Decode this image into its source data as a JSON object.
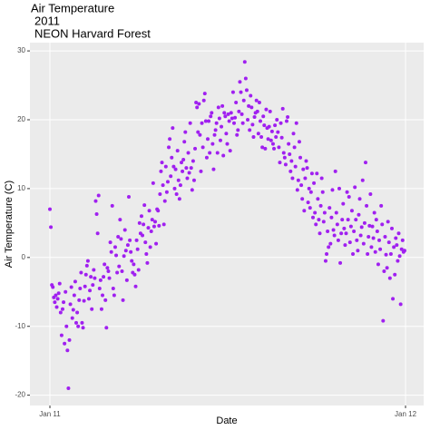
{
  "chart_data": {
    "type": "scatter",
    "title": [
      "Air Temperature",
      "2011",
      "NEON Harvard Forest"
    ],
    "x_label": "Date",
    "y_label": "Air Temperature (C)",
    "color": "#a020f0",
    "grid": true,
    "xlim": [
      -20.5,
      383.6
    ],
    "xticks": [
      {
        "value": 0,
        "label": "Jan 11"
      },
      {
        "value": 365,
        "label": "Jan 12"
      }
    ],
    "ylim": [
      -21.5,
      31.2
    ],
    "yticks": [
      -20,
      -10,
      0,
      10,
      20,
      30
    ],
    "x": [
      0,
      1,
      2,
      3,
      4,
      5,
      6,
      7,
      8,
      9,
      10,
      11,
      12,
      13,
      14,
      15,
      16,
      17,
      18,
      19,
      20,
      21,
      22,
      23,
      24,
      25,
      26,
      27,
      28,
      29,
      30,
      31,
      32,
      33,
      34,
      35,
      36,
      37,
      38,
      39,
      40,
      41,
      42,
      43,
      44,
      45,
      46,
      47,
      48,
      49,
      50,
      51,
      52,
      53,
      54,
      55,
      56,
      57,
      58,
      59,
      60,
      61,
      62,
      63,
      64,
      65,
      66,
      67,
      68,
      69,
      70,
      71,
      72,
      73,
      74,
      75,
      76,
      77,
      78,
      79,
      80,
      81,
      82,
      83,
      84,
      85,
      86,
      87,
      88,
      89,
      90,
      91,
      92,
      93,
      94,
      95,
      96,
      97,
      98,
      99,
      100,
      101,
      102,
      103,
      104,
      105,
      106,
      107,
      108,
      109,
      110,
      111,
      112,
      113,
      114,
      115,
      116,
      117,
      118,
      119,
      120,
      121,
      122,
      123,
      124,
      125,
      126,
      127,
      128,
      129,
      130,
      131,
      132,
      133,
      134,
      135,
      136,
      137,
      138,
      139,
      140,
      141,
      142,
      143,
      144,
      145,
      146,
      147,
      148,
      149,
      150,
      151,
      152,
      153,
      154,
      155,
      156,
      157,
      158,
      159,
      160,
      161,
      162,
      163,
      164,
      165,
      166,
      167,
      168,
      169,
      170,
      171,
      172,
      173,
      174,
      175,
      176,
      177,
      178,
      179,
      180,
      181,
      182,
      183,
      184,
      185,
      186,
      187,
      188,
      189,
      190,
      191,
      192,
      193,
      194,
      195,
      196,
      197,
      198,
      199,
      200,
      201,
      202,
      203,
      204,
      205,
      206,
      207,
      208,
      209,
      210,
      211,
      212,
      213,
      214,
      215,
      216,
      217,
      218,
      219,
      220,
      221,
      222,
      223,
      224,
      225,
      226,
      227,
      228,
      229,
      230,
      231,
      232,
      233,
      234,
      235,
      236,
      237,
      238,
      239,
      240,
      241,
      242,
      243,
      244,
      245,
      246,
      247,
      248,
      249,
      250,
      251,
      252,
      253,
      254,
      255,
      256,
      257,
      258,
      259,
      260,
      261,
      262,
      263,
      264,
      265,
      266,
      267,
      268,
      269,
      270,
      271,
      272,
      273,
      274,
      275,
      276,
      277,
      278,
      279,
      280,
      281,
      282,
      283,
      284,
      285,
      286,
      287,
      288,
      289,
      290,
      291,
      292,
      293,
      294,
      295,
      296,
      297,
      298,
      299,
      300,
      301,
      302,
      303,
      304,
      305,
      306,
      307,
      308,
      309,
      310,
      311,
      312,
      313,
      314,
      315,
      316,
      317,
      318,
      319,
      320,
      321,
      322,
      323,
      324,
      325,
      326,
      327,
      328,
      329,
      330,
      331,
      332,
      333,
      334,
      335,
      336,
      337,
      338,
      339,
      340,
      341,
      342,
      343,
      344,
      345,
      346,
      347,
      348,
      349,
      350,
      351,
      352,
      353,
      354,
      355,
      356,
      357,
      358,
      359,
      360,
      361,
      362,
      363,
      364
    ],
    "values": [
      7,
      4.4,
      -4,
      -4.3,
      -5.8,
      -6.5,
      -5.5,
      -7.2,
      -6,
      -5.2,
      -3.8,
      -8,
      -11.3,
      -7.5,
      -6.5,
      -12.5,
      -5,
      -10,
      -13.5,
      -19,
      -12,
      -6.8,
      -4.3,
      -8.8,
      -7.6,
      -5.5,
      -3.5,
      -9.5,
      -8,
      -10,
      -6.2,
      -4.5,
      -2.2,
      -9.5,
      -10.2,
      -6.3,
      -4.2,
      -2.5,
      -1.2,
      -0.5,
      -6,
      -4.8,
      -2.8,
      -7.5,
      -4,
      -1.8,
      -3,
      8.2,
      6.3,
      3.5,
      9,
      -4.5,
      -3.3,
      -7.5,
      -5.5,
      -2.8,
      -1,
      -6.2,
      -10.2,
      -1.5,
      -2,
      -3,
      2.2,
      0.8,
      7.5,
      -4.5,
      -5.5,
      1.5,
      0.3,
      -2.2,
      3,
      -1.3,
      5.5,
      2.7,
      -2,
      -6.2,
      0.2,
      4,
      1,
      -3.3,
      1.8,
      8.8,
      2.5,
      0.8,
      -0.5,
      -2.2,
      -1,
      -2.5,
      -4.2,
      2.5,
      1.2,
      -1.8,
      5,
      3.5,
      6,
      3.2,
      4.8,
      7.6,
      2.2,
      0.5,
      -0.8,
      4.3,
      6.8,
      1.5,
      3.8,
      5.5,
      10.8,
      4.5,
      5.2,
      2,
      7,
      6.8,
      4.6,
      9.2,
      12.5,
      13.8,
      10.5,
      4.8,
      8.2,
      13.2,
      9.5,
      11,
      16,
      17.2,
      11.8,
      14.5,
      18.8,
      13.2,
      10,
      12.8,
      9.2,
      15.5,
      11.2,
      8.5,
      10.5,
      13.8,
      12.5,
      14.2,
      16.8,
      18.2,
      13,
      11.5,
      15.2,
      12.3,
      19.5,
      13,
      9.8,
      14,
      11.2,
      15.8,
      22.5,
      21.8,
      18.2,
      22.3,
      17.8,
      12.5,
      19.5,
      16,
      22.8,
      23.8,
      19.8,
      14.5,
      17.2,
      19.8,
      15.2,
      20.5,
      21,
      16.5,
      12.8,
      17.8,
      18.5,
      19.5,
      15.2,
      21.8,
      20.2,
      17,
      19,
      22,
      14.8,
      21,
      20.5,
      18,
      16.5,
      20.8,
      19.8,
      15.5,
      21,
      20.2,
      24,
      19.5,
      20.3,
      22.5,
      17.8,
      18.5,
      21.2,
      25.5,
      24,
      20.8,
      19.5,
      22.8,
      28.4,
      26,
      24.3,
      20,
      22,
      18.5,
      23.5,
      21.8,
      19.3,
      17.5,
      20.4,
      21,
      22.8,
      21.2,
      18,
      22.5,
      19.8,
      17.5,
      16,
      20.5,
      19.2,
      15.8,
      21.5,
      18.8,
      17.2,
      19,
      21.2,
      17,
      18.3,
      16.5,
      15.8,
      19.2,
      17.5,
      20,
      18.2,
      16,
      13.8,
      19.5,
      17.4,
      21.6,
      15.2,
      14.5,
      13.5,
      19.8,
      20.4,
      16.5,
      15,
      12.5,
      14,
      11.5,
      18,
      16,
      13.2,
      19.5,
      9.8,
      11.2,
      16.8,
      14.5,
      10.5,
      8.5,
      12.8,
      6.8,
      11.5,
      14,
      13,
      8,
      10,
      7.2,
      9.5,
      12.2,
      5.8,
      10.8,
      6.5,
      4.8,
      12.2,
      8.5,
      5.5,
      3.5,
      7.5,
      11.5,
      9.5,
      5.2,
      6.5,
      -0.5,
      0.5,
      3.8,
      1.5,
      7.2,
      2,
      5.8,
      9.8,
      4,
      3.2,
      12.5,
      6.5,
      4.8,
      2.5,
      10,
      -0.8,
      3.5,
      5.5,
      7.8,
      4.2,
      1.8,
      3.5,
      9.5,
      5.5,
      8.8,
      2.2,
      4.5,
      6.8,
      0.5,
      3.8,
      10.2,
      5.5,
      2.5,
      1,
      6.2,
      8.5,
      3.2,
      4.4,
      11.2,
      2,
      5,
      13.8,
      7.5,
      0.5,
      3,
      4.6,
      9.2,
      1.5,
      4.5,
      2.8,
      6.5,
      0.8,
      5.5,
      3.8,
      -1,
      2.5,
      1.2,
      7.5,
      4.8,
      -9.2,
      -2,
      3,
      0.4,
      -1.5,
      5.2,
      2.2,
      -3,
      0.5,
      4.2,
      -6,
      1.5,
      -2.5,
      2.8,
      1.8,
      -0.5,
      3.5,
      0.2,
      -6.8,
      1.2,
      2.5,
      0.8,
      1
    ]
  }
}
